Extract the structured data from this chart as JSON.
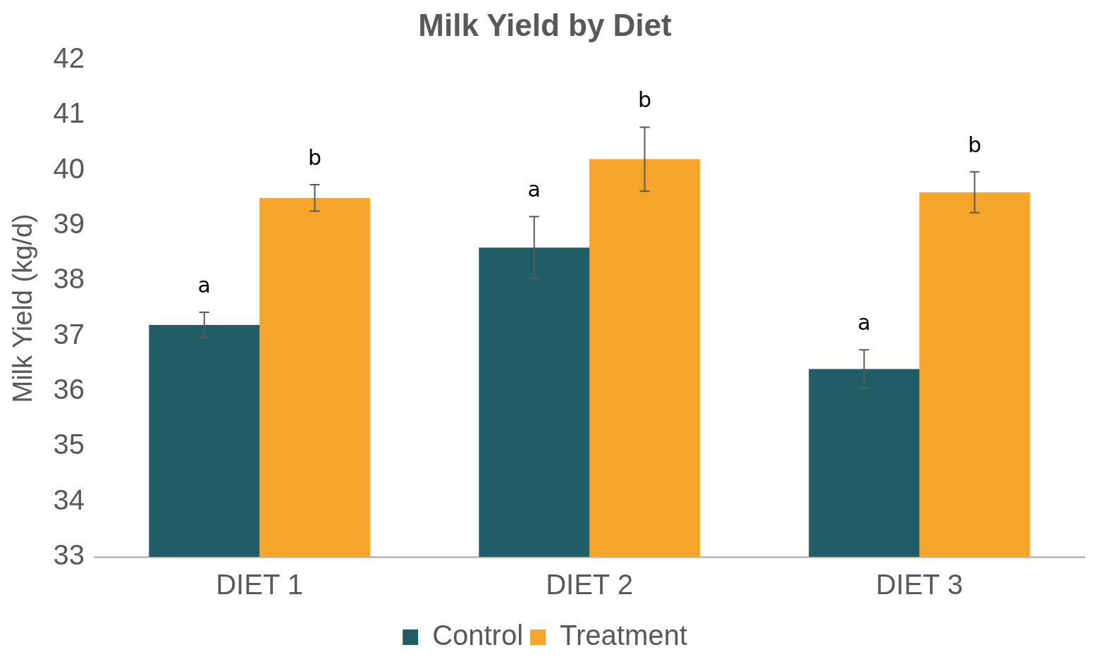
{
  "chart_data": {
    "type": "bar",
    "title": "Milk Yield by Diet",
    "ylabel": "Milk Yield (kg/d)",
    "categories": [
      "DIET 1",
      "DIET 2",
      "DIET 3"
    ],
    "series": [
      {
        "name": "Control",
        "color": "#1f5e66",
        "values": [
          37.2,
          38.6,
          36.4
        ],
        "errors": [
          0.23,
          0.56,
          0.35
        ]
      },
      {
        "name": "Treatment",
        "color": "#f5a52a",
        "values": [
          39.5,
          40.2,
          39.6
        ],
        "errors": [
          0.24,
          0.58,
          0.37
        ]
      }
    ],
    "ylim": [
      33,
      42
    ],
    "yticks": [
      33,
      34,
      35,
      36,
      37,
      38,
      39,
      40,
      41,
      42
    ],
    "grid": false,
    "legend": "bottom",
    "annotations": [
      "a",
      "b",
      "a",
      "b",
      "a",
      "b"
    ]
  }
}
